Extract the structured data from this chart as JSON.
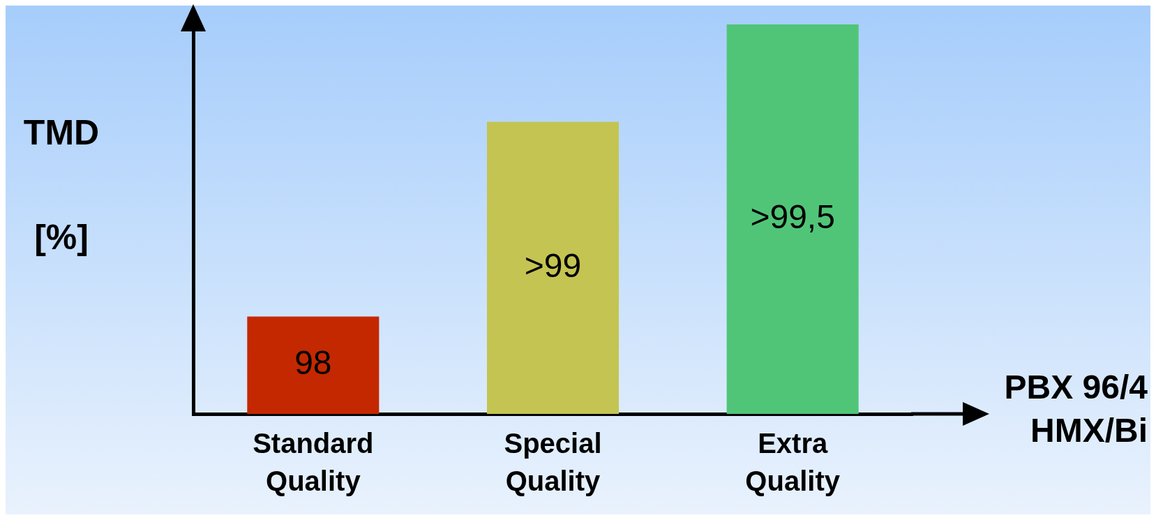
{
  "chart_data": {
    "type": "bar",
    "ylabel": "TMD [%]",
    "xlabel": "PBX 96/4 HMX/Bi",
    "categories": [
      "Standard Quality",
      "Special Quality",
      "Extra Quality"
    ],
    "values": [
      98,
      99,
      99.5
    ],
    "ylim": [
      97.5,
      99.5
    ],
    "tick_labels": "x",
    "colors": [
      "#c42800",
      "#c4c452",
      "#50c578"
    ],
    "value_labels": [
      "98",
      ">99",
      ">99,5"
    ],
    "grid": false,
    "legend": false
  }
}
